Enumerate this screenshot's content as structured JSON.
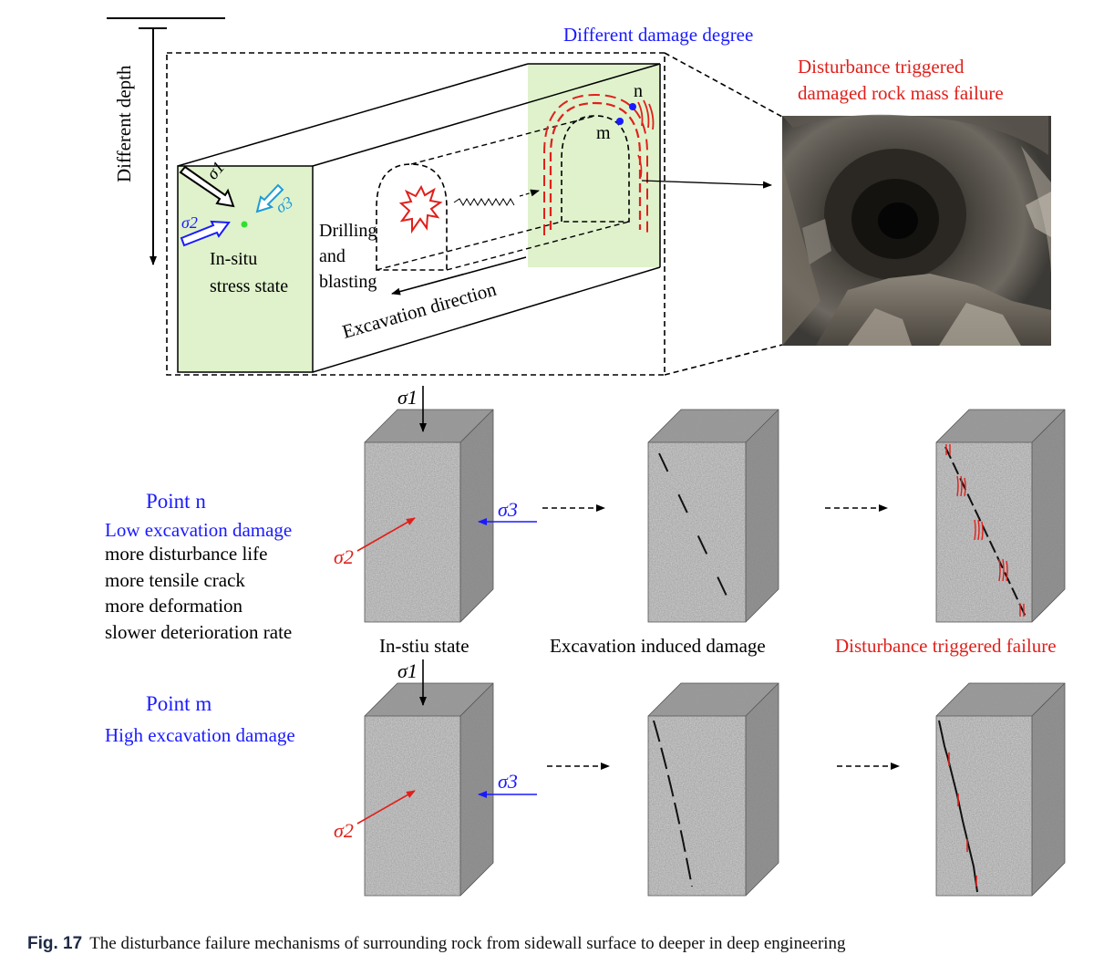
{
  "top": {
    "depth_label": "Different depth",
    "damage_degree": "Different damage degree",
    "failure_title_1": "Disturbance triggered",
    "failure_title_2": "damaged rock mass failure",
    "sigma1": "σ1",
    "sigma2": "σ2",
    "sigma3": "σ3",
    "insitu_1": "In-situ",
    "insitu_2": "stress state",
    "drilling_1": "Drilling",
    "drilling_2": "and",
    "drilling_3": "blasting",
    "excavation_direction": "Excavation direction",
    "point_n": "n",
    "point_m": "m"
  },
  "rows": {
    "n": {
      "title": "Point n",
      "subtitle": "Low excavation damage",
      "lines": [
        "more disturbance life",
        "more tensile crack",
        "more deformation",
        "slower deterioration rate"
      ]
    },
    "m": {
      "title": "Point m",
      "subtitle": "High excavation damage"
    }
  },
  "stages": {
    "insitu": "In-stiu state",
    "excavation": "Excavation induced damage",
    "failure": "Disturbance triggered failure"
  },
  "stress": {
    "s1": "σ1",
    "s2": "σ2",
    "s3": "σ3"
  },
  "caption": {
    "fig": "Fig. 17",
    "text": "The disturbance failure mechanisms of surrounding rock from sidewall surface to deeper in deep engineering"
  },
  "colors": {
    "blue": "#1a1aff",
    "red": "#e0201b",
    "light_green": "#dff2cc",
    "cyan": "#1e9bd7"
  }
}
